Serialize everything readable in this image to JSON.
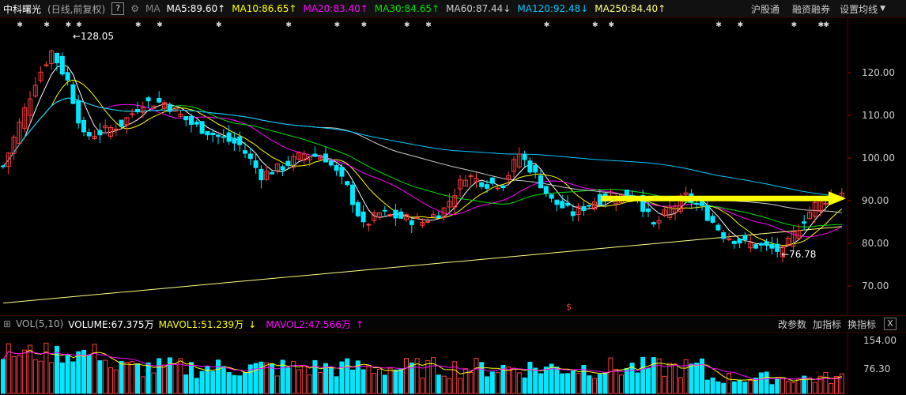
{
  "header": {
    "stock_name": "中科曙光",
    "period_info": "(日线,前复权)",
    "help_label": "?",
    "settings_icon": "gear-icon",
    "ma_label": "MA",
    "ma_items": [
      {
        "text": "MA5:89.60",
        "arrow": "↑",
        "color": "#ffffff"
      },
      {
        "text": "MA10:86.65",
        "arrow": "↑",
        "color": "#ffff00"
      },
      {
        "text": "MA20:83.40",
        "arrow": "↑",
        "color": "#ff00ff"
      },
      {
        "text": "MA30:84.65",
        "arrow": "↑",
        "color": "#00e000"
      },
      {
        "text": "MA60:87.44",
        "arrow": "↓",
        "color": "#cccccc"
      },
      {
        "text": "MA120:92.48",
        "arrow": "↓",
        "color": "#00c8ff"
      },
      {
        "text": "MA250:84.40",
        "arrow": "↑",
        "color": "#ffff80"
      }
    ],
    "links": [
      "沪股通",
      "融资融券",
      "设置均线"
    ],
    "dropdown_icon": "caret-down-icon"
  },
  "price_axis": {
    "labels": [
      "120.00",
      "110.00",
      "100.00",
      "90.00",
      "80.00",
      "70.00"
    ],
    "values": [
      120,
      110,
      100,
      90,
      80,
      70
    ]
  },
  "annotations": {
    "high_label": "←128.05",
    "low_label": "←76.78",
    "marker": "$"
  },
  "volume_bar": {
    "label": "VOL(5,10)",
    "volume": "VOLUME:67.375万",
    "mavol1": "MAVOL1:51.239万",
    "mavol1_arrow": "↓",
    "mavol2": "MAVOL2:47.566万",
    "mavol2_arrow": "↑",
    "links": [
      "改参数",
      "加指标",
      "换指标"
    ],
    "close_label": "X"
  },
  "volume_axis": {
    "labels": [
      "154.00",
      "76.30"
    ],
    "values": [
      154,
      76.3
    ]
  },
  "colors": {
    "up": "#ff3c3c",
    "down": "#00e8ff",
    "background": "#000000",
    "arrow": "#ffff00"
  }
}
